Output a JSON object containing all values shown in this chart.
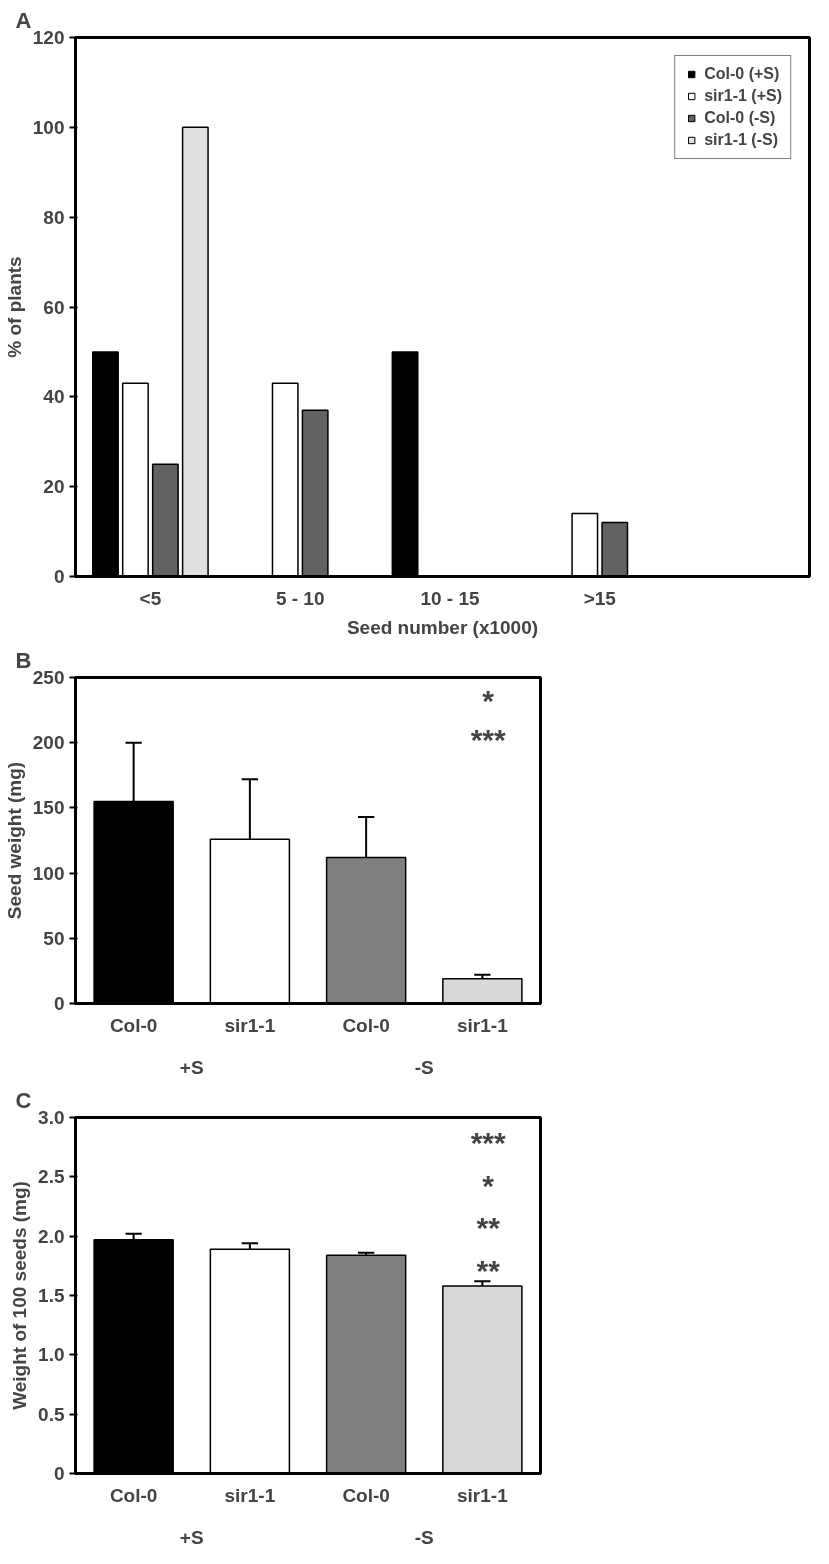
{
  "chart_data": [
    {
      "type": "bar",
      "title": "A",
      "xlabel": "Seed number (x1000)",
      "ylabel": "% of plants",
      "categories": [
        "<5",
        "5 - 10",
        "10 - 15",
        ">15"
      ],
      "series": [
        {
          "name": "Col-0 (+S)",
          "color": "#000000",
          "values": [
            50,
            0,
            50,
            0
          ]
        },
        {
          "name": "sir1-1 (+S)",
          "color": "#ffffff",
          "values": [
            43,
            43,
            0,
            14
          ]
        },
        {
          "name": "Col-0 (-S)",
          "color": "#626262",
          "values": [
            25,
            37,
            0,
            12
          ]
        },
        {
          "name": "sir1-1 (-S)",
          "color": "#e0e0e0",
          "values": [
            100,
            0,
            0,
            0
          ]
        }
      ],
      "ylim": [
        0,
        120
      ],
      "yticks": [
        0,
        20,
        40,
        60,
        80,
        100,
        120
      ],
      "legend": "top right",
      "grid": false
    },
    {
      "type": "bar",
      "title": "B",
      "ylabel": "Seed weight (mg)",
      "categories": [
        "Col-0",
        "sir1-1",
        "Col-0",
        "sir1-1"
      ],
      "values": [
        155,
        126,
        112,
        19
      ],
      "colors": [
        "#000000",
        "#ffffff",
        "#808080",
        "#d9d9d9"
      ],
      "errors": [
        [
          155,
          200
        ],
        [
          126,
          172
        ],
        [
          112,
          143
        ],
        [
          19,
          22
        ]
      ],
      "ylim": [
        0,
        250
      ],
      "yticks": [
        0,
        50,
        100,
        150,
        200,
        250
      ],
      "grid": false,
      "annotations": [
        "+S",
        "-S",
        "*",
        "***"
      ]
    },
    {
      "type": "bar",
      "title": "C",
      "ylabel": "Weight of 100 seeds (mg)",
      "categories": [
        "Col-0",
        "sir1-1",
        "Col-0",
        "sir1-1"
      ],
      "values": [
        1.97,
        1.89,
        1.84,
        1.58
      ],
      "colors": [
        "#000000",
        "#ffffff",
        "#808080",
        "#d9d9d9"
      ],
      "errors": [
        [
          1.97,
          2.02
        ],
        [
          1.89,
          1.94
        ],
        [
          1.84,
          1.86
        ],
        [
          1.58,
          1.62
        ]
      ],
      "ylim": [
        0,
        3.0
      ],
      "yticks": [
        0,
        {
          "value": 0.5,
          "label": "0.5"
        },
        {
          "value": 1,
          "label": "1.0"
        },
        {
          "value": 1.5,
          "label": "1.5"
        },
        {
          "value": 2,
          "label": "2.0"
        },
        {
          "value": 2.5,
          "label": "2.5"
        },
        {
          "value": 3,
          "label": "3.0"
        }
      ],
      "grid": false,
      "annotations": [
        "+S",
        "-S",
        "***",
        "*",
        "**",
        "**"
      ]
    }
  ]
}
